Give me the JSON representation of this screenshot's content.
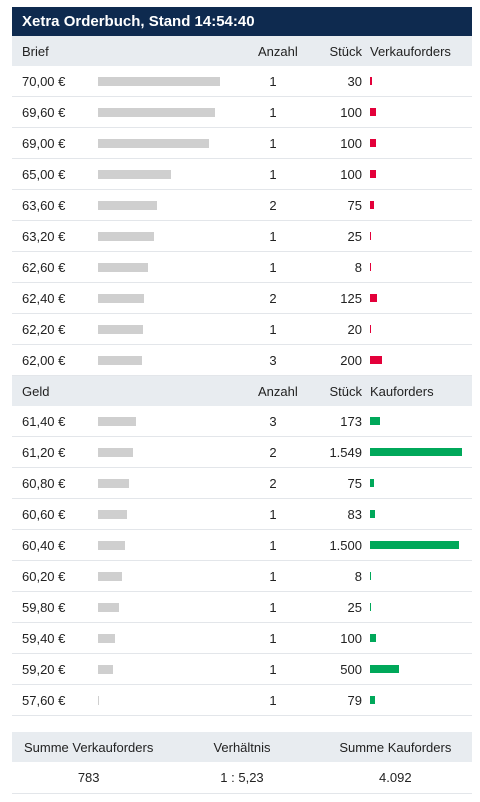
{
  "title": "Xetra Orderbuch, Stand 14:54:40",
  "colors": {
    "header": "#0e2a4f",
    "sell": "#e3003a",
    "buy": "#00a85a",
    "depth": "#cfcfcf"
  },
  "ask": {
    "header": {
      "price": "Brief",
      "count": "Anzahl",
      "qty": "Stück",
      "orders": "Verkauforders"
    },
    "rows": [
      {
        "price": "70,00 €",
        "count": "1",
        "qty": "30",
        "depth_frac": 1.0,
        "vol_frac": 0.019
      },
      {
        "price": "69,60 €",
        "count": "1",
        "qty": "100",
        "depth_frac": 0.96,
        "vol_frac": 0.065
      },
      {
        "price": "69,00 €",
        "count": "1",
        "qty": "100",
        "depth_frac": 0.91,
        "vol_frac": 0.065
      },
      {
        "price": "65,00 €",
        "count": "1",
        "qty": "100",
        "depth_frac": 0.6,
        "vol_frac": 0.065
      },
      {
        "price": "63,60 €",
        "count": "2",
        "qty": "75",
        "depth_frac": 0.48,
        "vol_frac": 0.048
      },
      {
        "price": "63,20 €",
        "count": "1",
        "qty": "25",
        "depth_frac": 0.46,
        "vol_frac": 0.016
      },
      {
        "price": "62,60 €",
        "count": "1",
        "qty": "8",
        "depth_frac": 0.41,
        "vol_frac": 0.005
      },
      {
        "price": "62,40 €",
        "count": "2",
        "qty": "125",
        "depth_frac": 0.38,
        "vol_frac": 0.081
      },
      {
        "price": "62,20 €",
        "count": "1",
        "qty": "20",
        "depth_frac": 0.37,
        "vol_frac": 0.013
      },
      {
        "price": "62,00 €",
        "count": "3",
        "qty": "200",
        "depth_frac": 0.36,
        "vol_frac": 0.13
      }
    ]
  },
  "bid": {
    "header": {
      "price": "Geld",
      "count": "Anzahl",
      "qty": "Stück",
      "orders": "Kauforders"
    },
    "rows": [
      {
        "price": "61,40 €",
        "count": "3",
        "qty": "173",
        "depth_frac": 0.31,
        "vol_frac": 0.11
      },
      {
        "price": "61,20 €",
        "count": "2",
        "qty": "1.549",
        "depth_frac": 0.29,
        "vol_frac": 1.0
      },
      {
        "price": "60,80 €",
        "count": "2",
        "qty": "75",
        "depth_frac": 0.25,
        "vol_frac": 0.048
      },
      {
        "price": "60,60 €",
        "count": "1",
        "qty": "83",
        "depth_frac": 0.24,
        "vol_frac": 0.054
      },
      {
        "price": "60,40 €",
        "count": "1",
        "qty": "1.500",
        "depth_frac": 0.22,
        "vol_frac": 0.97
      },
      {
        "price": "60,20 €",
        "count": "1",
        "qty": "8",
        "depth_frac": 0.2,
        "vol_frac": 0.005
      },
      {
        "price": "59,80 €",
        "count": "1",
        "qty": "25",
        "depth_frac": 0.17,
        "vol_frac": 0.016
      },
      {
        "price": "59,40 €",
        "count": "1",
        "qty": "100",
        "depth_frac": 0.14,
        "vol_frac": 0.065
      },
      {
        "price": "59,20 €",
        "count": "1",
        "qty": "500",
        "depth_frac": 0.12,
        "vol_frac": 0.32
      },
      {
        "price": "57,60 €",
        "count": "1",
        "qty": "79",
        "depth_frac": 0.01,
        "vol_frac": 0.051
      }
    ]
  },
  "summary": {
    "sell_label": "Summe Verkauforders",
    "ratio_label": "Verhältnis",
    "buy_label": "Summe Kauforders",
    "sell_value": "783",
    "ratio_value": "1 : 5,23",
    "buy_value": "4.092"
  }
}
